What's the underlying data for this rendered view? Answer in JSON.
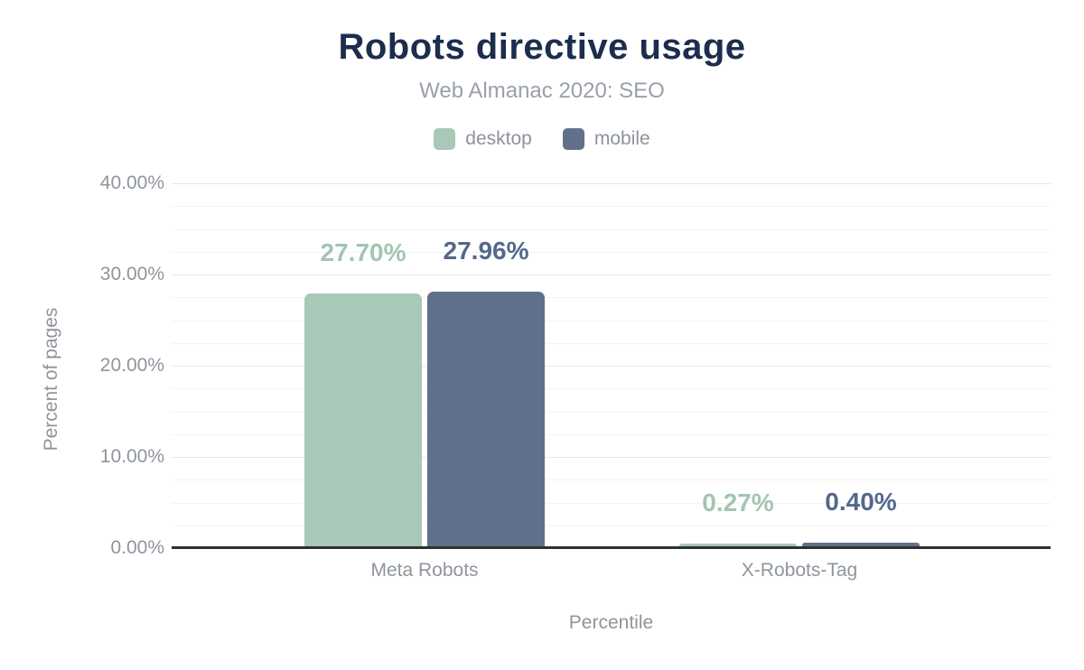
{
  "title": "Robots directive usage",
  "subtitle": "Web Almanac 2020: SEO",
  "colors": {
    "title": "#1c2d4d",
    "subtitle": "#9aa0a8",
    "axis_text": "#8f959d",
    "legend_text": "#8d939b",
    "axis_line": "#2f2f2f",
    "grid_major": "#e6e8ea",
    "grid_minor": "#f3f4f5",
    "desktop": "#a8c9b8",
    "mobile": "#61718b",
    "desktop_label": "#a2c5b2",
    "mobile_label": "#54688c"
  },
  "chart_data": {
    "type": "bar",
    "title": "Robots directive usage",
    "subtitle": "Web Almanac 2020: SEO",
    "categories": [
      "Meta Robots",
      "X-Robots-Tag"
    ],
    "series": [
      {
        "name": "desktop",
        "color": "#a8c9b8",
        "label_color": "#a2c5b2",
        "values": [
          27.7,
          0.27
        ],
        "labels": [
          "27.70%",
          "0.27%"
        ]
      },
      {
        "name": "mobile",
        "color": "#61718b",
        "label_color": "#54688c",
        "values": [
          27.96,
          0.4
        ],
        "labels": [
          "27.96%",
          "0.40%"
        ]
      }
    ],
    "xlabel": "Percentile",
    "ylabel": "Percent of pages",
    "ylim": [
      0,
      40
    ],
    "yticks": [
      {
        "value": 0,
        "label": "0.00%"
      },
      {
        "value": 10,
        "label": "10.00%"
      },
      {
        "value": 20,
        "label": "20.00%"
      },
      {
        "value": 30,
        "label": "30.00%"
      },
      {
        "value": 40,
        "label": "40.00%"
      }
    ],
    "minor_grid_step": 2.5,
    "grid": true,
    "legend_position": "top"
  }
}
